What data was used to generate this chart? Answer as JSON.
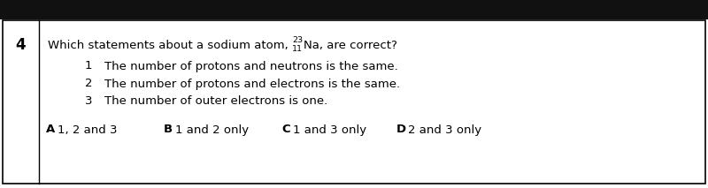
{
  "question_number": "4",
  "question_text_part1": "Which statements about a sodium atom, ",
  "na_superscript": "23",
  "na_subscript": "11",
  "na_symbol": "Na, are correct?",
  "statements": [
    {
      "num": "1",
      "text": "The number of protons and neutrons is the same."
    },
    {
      "num": "2",
      "text": "The number of protons and electrons is the same."
    },
    {
      "num": "3",
      "text": "The number of outer electrons is one."
    }
  ],
  "options": [
    {
      "letter": "A",
      "text": "1, 2 and 3"
    },
    {
      "letter": "B",
      "text": "1 and 2 only"
    },
    {
      "letter": "C",
      "text": "1 and 3 only"
    },
    {
      "letter": "D",
      "text": "2 and 3 only"
    }
  ],
  "background_color": "#ffffff",
  "border_color": "#000000",
  "text_color": "#000000",
  "header_bar_color": "#111111",
  "font_size": 9.5,
  "qnum_font_size": 12
}
